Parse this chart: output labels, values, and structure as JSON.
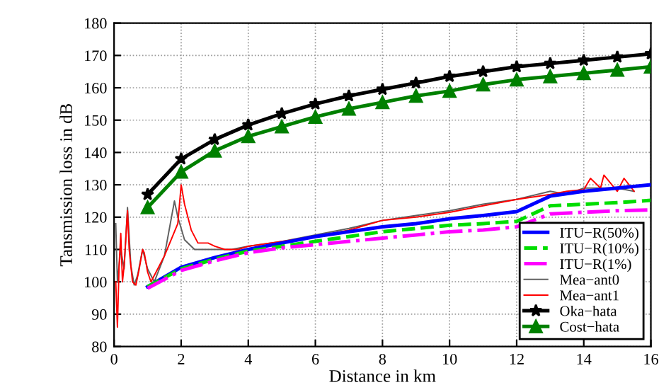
{
  "chart_data": {
    "type": "line",
    "xlabel": "Distance in km",
    "ylabel": "Tansmission loss in dB",
    "xlim": [
      0,
      16
    ],
    "ylim": [
      80,
      180
    ],
    "xticks": [
      0,
      2,
      4,
      6,
      8,
      10,
      12,
      14,
      16
    ],
    "yticks": [
      80,
      90,
      100,
      110,
      120,
      130,
      140,
      150,
      160,
      170,
      180
    ],
    "grid": true,
    "legend": "bottom right",
    "series": [
      {
        "name": "ITU−R(50%)",
        "color": "#0000ff",
        "line_style": "solid",
        "marker": "none",
        "x": [
          1,
          2,
          3,
          4,
          5,
          6,
          7,
          8,
          9,
          10,
          11,
          12,
          13,
          14,
          15,
          16
        ],
        "values": [
          98.5,
          104.5,
          107.5,
          110,
          112,
          114,
          115.5,
          117,
          118,
          119.5,
          120.5,
          121.7,
          126.5,
          128,
          129,
          130
        ]
      },
      {
        "name": "ITU−R(10%)",
        "color": "#00dd00",
        "line_style": "dashed",
        "marker": "none",
        "x": [
          1,
          2,
          3,
          4,
          5,
          6,
          7,
          8,
          9,
          10,
          11,
          12,
          13,
          14,
          15,
          16
        ],
        "values": [
          98.5,
          104,
          107,
          109.5,
          111,
          112.5,
          114,
          115.5,
          116.5,
          117.5,
          118,
          118.7,
          123.5,
          124,
          124.5,
          125.2
        ]
      },
      {
        "name": "ITU−R(1%)",
        "color": "#ff00ff",
        "line_style": "dotted",
        "marker": "none",
        "x": [
          1,
          2,
          3,
          4,
          5,
          6,
          7,
          8,
          9,
          10,
          11,
          12,
          13,
          14,
          15,
          16
        ],
        "values": [
          98,
          103.5,
          106.5,
          109,
          110.5,
          111.5,
          112.5,
          113.5,
          114.5,
          115.5,
          116,
          117,
          121,
          121.5,
          122,
          122.2
        ]
      },
      {
        "name": "Mea−ant0",
        "color": "#606060",
        "line_style": "solid",
        "marker": "none",
        "x": [
          0.05,
          0.1,
          0.2,
          0.3,
          0.4,
          0.5,
          0.6,
          0.7,
          0.85,
          1,
          1.2,
          1.5,
          1.8,
          1.9,
          2.1,
          2.4,
          3,
          3.5,
          4,
          5,
          6,
          7,
          8,
          9,
          10,
          11,
          12,
          13,
          13.5,
          14,
          15,
          15.5
        ],
        "values": [
          118,
          100,
          110,
          104,
          123,
          105,
          99,
          102,
          110,
          104,
          100,
          108,
          125,
          120,
          113,
          110,
          110,
          110,
          111,
          112.5,
          114.5,
          116.5,
          119,
          120.5,
          122,
          124,
          125.5,
          128,
          127,
          129,
          129,
          128
        ]
      },
      {
        "name": "Mea−ant1",
        "color": "#ff0000",
        "line_style": "solid",
        "marker": "none",
        "x": [
          0.05,
          0.1,
          0.15,
          0.2,
          0.25,
          0.3,
          0.4,
          0.45,
          0.55,
          0.65,
          0.75,
          0.85,
          0.9,
          1,
          1.1,
          1.3,
          1.5,
          1.7,
          1.9,
          2,
          2.1,
          2.3,
          2.5,
          2.8,
          3,
          3.3,
          3.7,
          4,
          5,
          6,
          7,
          8,
          9,
          10,
          11,
          12,
          13,
          13.5,
          14,
          14.2,
          14.5,
          14.6,
          15,
          15.2,
          15.5
        ],
        "values": [
          100,
          86,
          105,
          115,
          100,
          105,
          122,
          110,
          100,
          99,
          104,
          110,
          109,
          103,
          100,
          104,
          108,
          113,
          118,
          130,
          124,
          116,
          112,
          112,
          111,
          110,
          110,
          111,
          112.5,
          114,
          116,
          119,
          120,
          121.5,
          123.5,
          125.5,
          127,
          128,
          128.5,
          132,
          129,
          133,
          128,
          132,
          128
        ]
      },
      {
        "name": "Oka−hata",
        "color": "#000000",
        "line_style": "solid",
        "marker": "star",
        "x": [
          1,
          2,
          3,
          4,
          5,
          6,
          7,
          8,
          9,
          10,
          11,
          12,
          13,
          14,
          15,
          16
        ],
        "values": [
          127,
          138,
          144,
          148.5,
          152,
          155,
          157.5,
          159.5,
          161.5,
          163.5,
          165,
          166.5,
          167.5,
          168.5,
          169.5,
          170.5
        ]
      },
      {
        "name": "Cost−hata",
        "color": "#008000",
        "line_style": "solid",
        "marker": "triangle",
        "x": [
          1,
          2,
          3,
          4,
          5,
          6,
          7,
          8,
          9,
          10,
          11,
          12,
          13,
          14,
          15,
          16
        ],
        "values": [
          123,
          134,
          140.5,
          145,
          148,
          151,
          153.5,
          155.5,
          157.5,
          159,
          161,
          162.5,
          163.5,
          164.5,
          165.5,
          166.5
        ]
      }
    ]
  }
}
